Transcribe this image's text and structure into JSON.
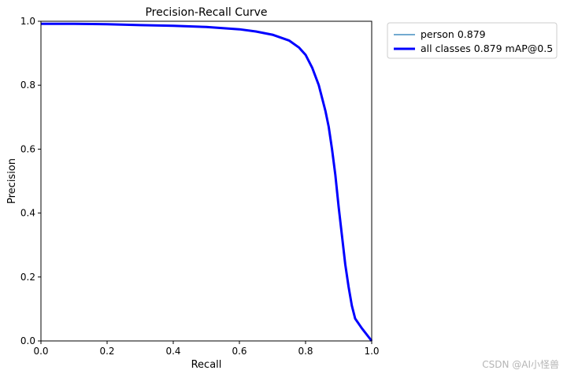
{
  "chart_data": {
    "type": "line",
    "title": "Precision-Recall Curve",
    "xlabel": "Recall",
    "ylabel": "Precision",
    "xlim": [
      0,
      1
    ],
    "ylim": [
      0,
      1
    ],
    "xticks": [
      "0.0",
      "0.2",
      "0.4",
      "0.6",
      "0.8",
      "1.0"
    ],
    "yticks": [
      "0.0",
      "0.2",
      "0.4",
      "0.6",
      "0.8",
      "1.0"
    ],
    "grid": false,
    "legend_position": "outside-right-top",
    "series": [
      {
        "name": "person 0.879",
        "color": "#1f77b4",
        "style": "thin",
        "x": [
          0.0,
          0.1,
          0.2,
          0.3,
          0.4,
          0.5,
          0.6,
          0.65,
          0.7,
          0.75,
          0.78,
          0.8,
          0.82,
          0.84,
          0.86,
          0.87,
          0.88,
          0.89,
          0.9,
          0.91,
          0.92,
          0.93,
          0.94,
          0.95,
          0.97,
          1.0
        ],
        "y": [
          0.992,
          0.992,
          0.991,
          0.988,
          0.986,
          0.982,
          0.975,
          0.968,
          0.958,
          0.94,
          0.918,
          0.895,
          0.855,
          0.8,
          0.72,
          0.67,
          0.6,
          0.52,
          0.42,
          0.33,
          0.24,
          0.17,
          0.11,
          0.07,
          0.04,
          0.0
        ]
      },
      {
        "name": "all classes 0.879 mAP@0.5",
        "color": "#0000ff",
        "style": "thick",
        "x": [
          0.0,
          0.1,
          0.2,
          0.3,
          0.4,
          0.5,
          0.6,
          0.65,
          0.7,
          0.75,
          0.78,
          0.8,
          0.82,
          0.84,
          0.86,
          0.87,
          0.88,
          0.89,
          0.9,
          0.91,
          0.92,
          0.93,
          0.94,
          0.95,
          0.97,
          1.0
        ],
        "y": [
          0.992,
          0.992,
          0.991,
          0.988,
          0.986,
          0.982,
          0.975,
          0.968,
          0.958,
          0.94,
          0.918,
          0.895,
          0.855,
          0.8,
          0.72,
          0.67,
          0.6,
          0.52,
          0.42,
          0.33,
          0.24,
          0.17,
          0.11,
          0.07,
          0.04,
          0.0
        ]
      }
    ]
  },
  "watermark": "CSDN @AI小怪兽"
}
